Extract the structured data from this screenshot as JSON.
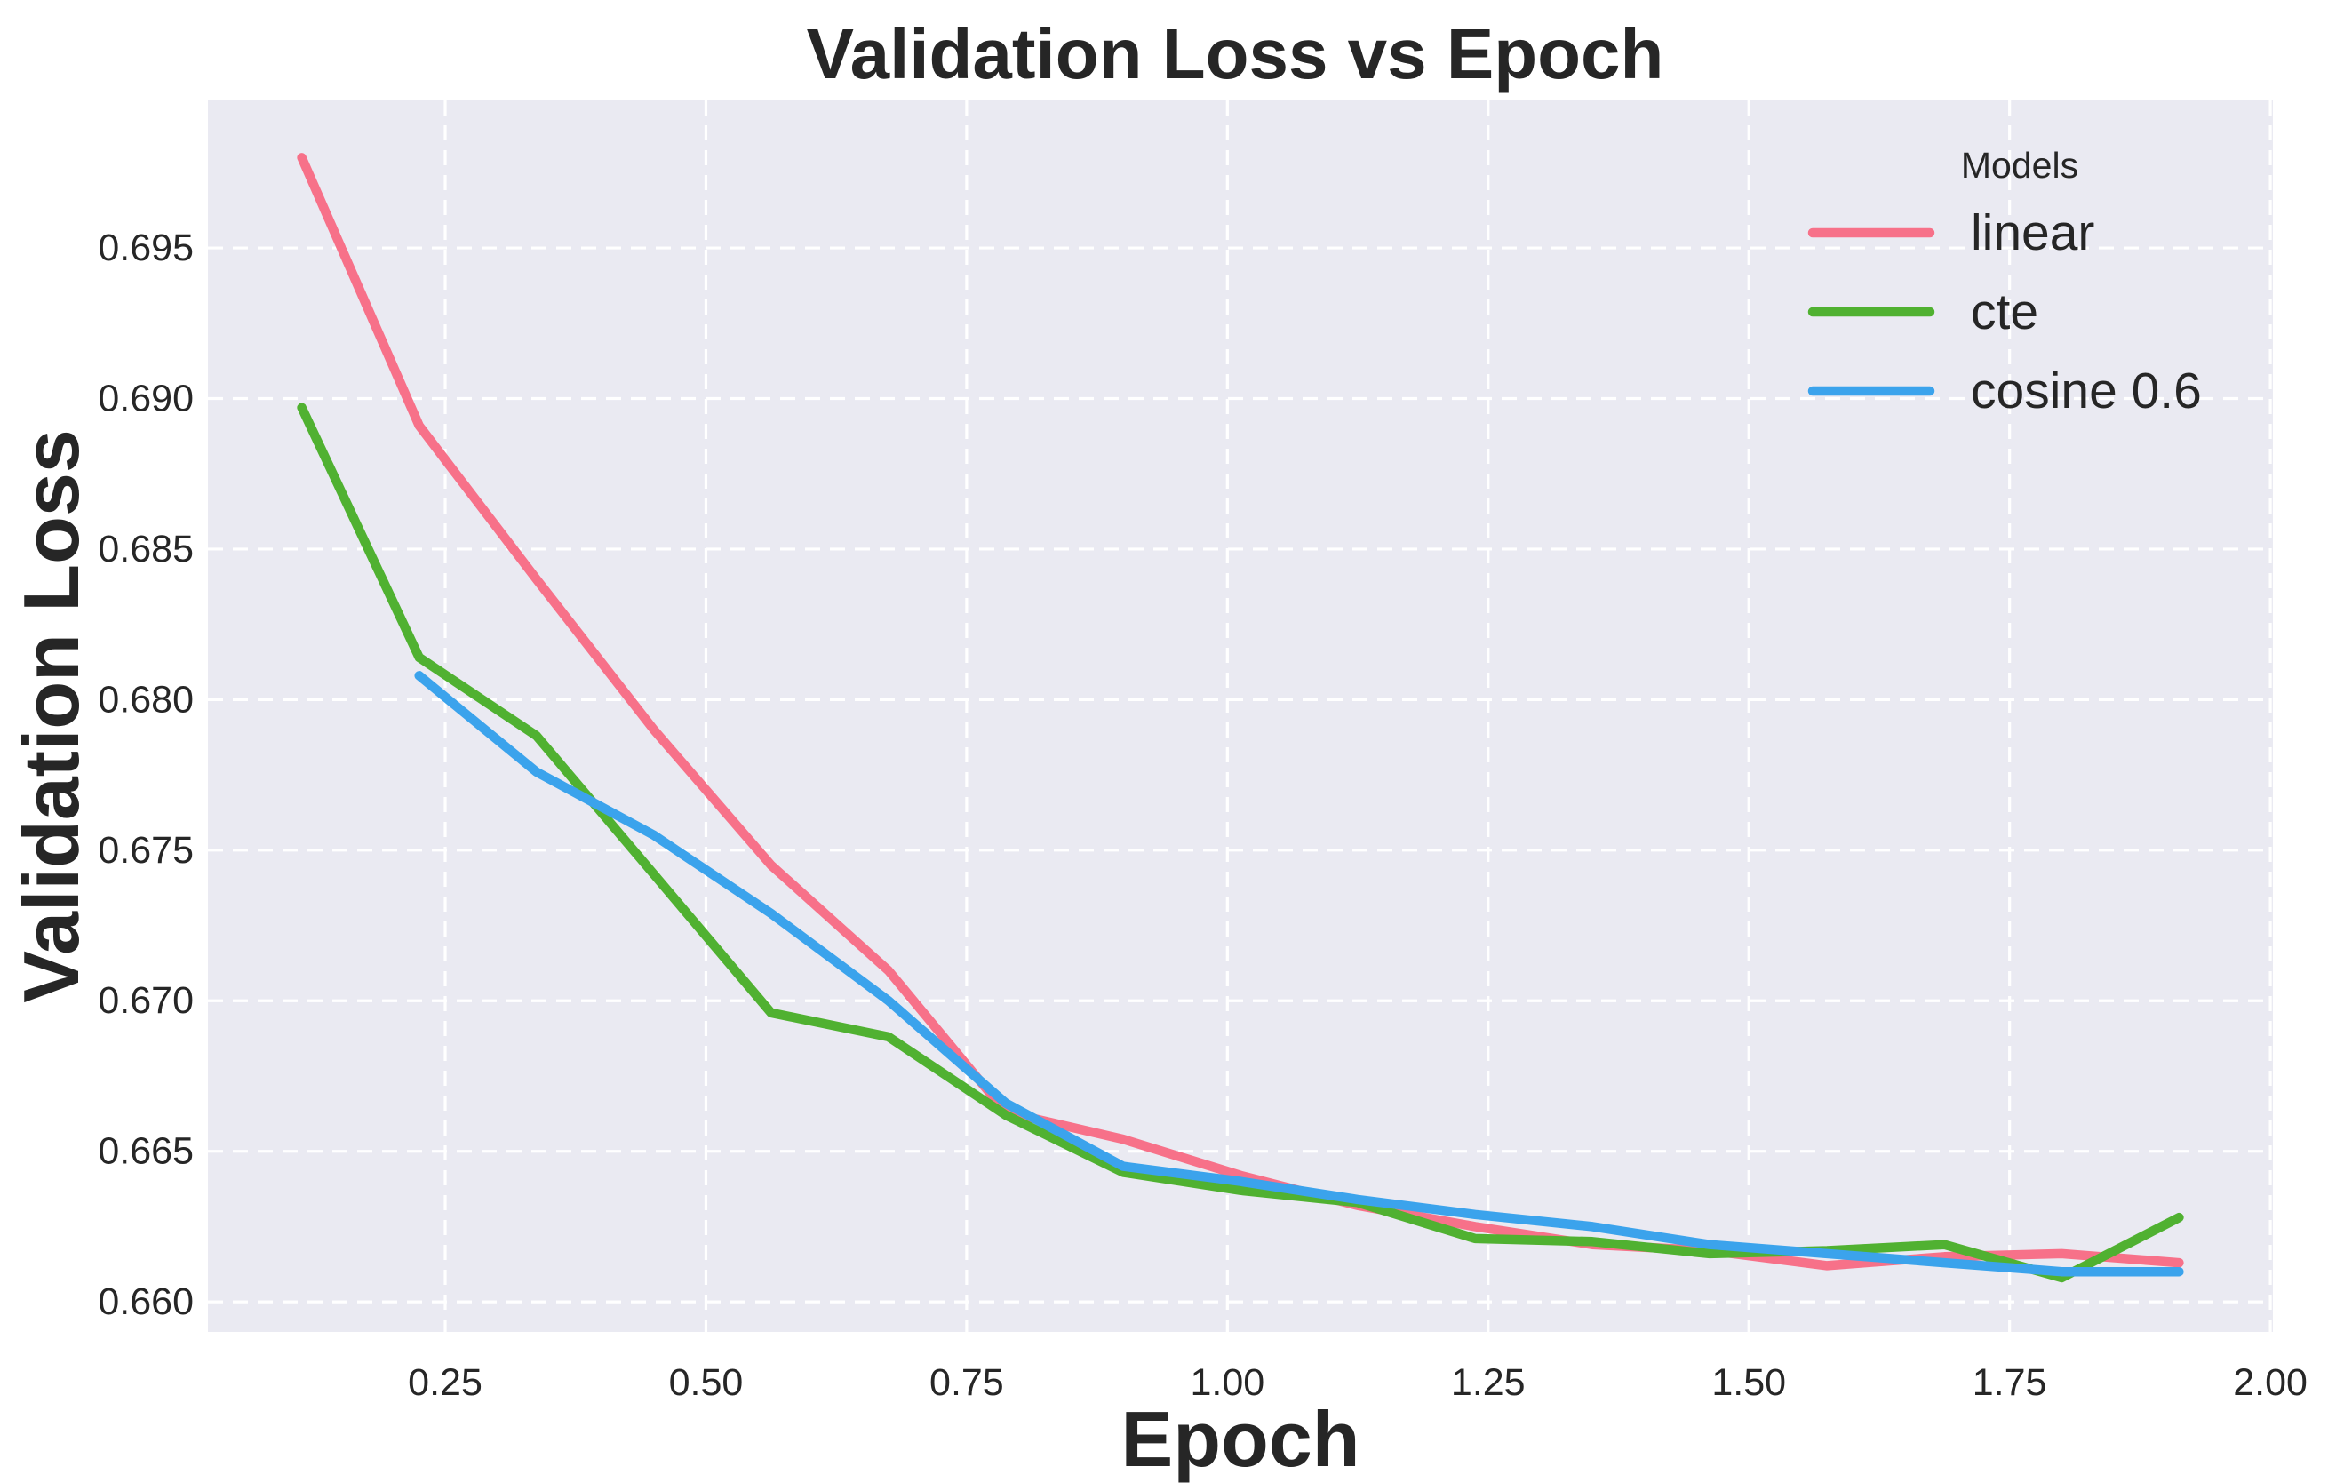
{
  "chart_data": {
    "type": "line",
    "title": "Validation Loss vs Epoch",
    "xlabel": "Epoch",
    "ylabel": "Validation Loss",
    "legend_title": "Models",
    "legend_position": "upper right",
    "grid": "dashed white on lavender background",
    "plot_bg_color": "#eaeaf2",
    "grid_color": "#ffffff",
    "text_color": "#262626",
    "xlim": [
      0.0225,
      2.0025
    ],
    "ylim": [
      0.659,
      0.6999
    ],
    "x_ticks": [
      0.25,
      0.5,
      0.75,
      1.0,
      1.25,
      1.5,
      1.75,
      2.0
    ],
    "x_tick_labels": [
      "0.25",
      "0.50",
      "0.75",
      "1.00",
      "1.25",
      "1.50",
      "1.75",
      "2.00"
    ],
    "y_ticks": [
      0.66,
      0.665,
      0.67,
      0.675,
      0.68,
      0.685,
      0.69,
      0.695
    ],
    "y_tick_labels": [
      "0.660",
      "0.665",
      "0.670",
      "0.675",
      "0.680",
      "0.685",
      "0.690",
      "0.695"
    ],
    "x": [
      0.1125,
      0.225,
      0.3375,
      0.45,
      0.5625,
      0.675,
      0.7875,
      0.9,
      1.0125,
      1.125,
      1.2375,
      1.35,
      1.4625,
      1.575,
      1.6875,
      1.8,
      1.9125
    ],
    "series": [
      {
        "name": "linear",
        "color": "#f77189",
        "values": [
          0.698,
          0.6891,
          0.684,
          0.679,
          0.6745,
          0.671,
          0.6663,
          0.6654,
          0.6642,
          0.6632,
          0.6625,
          0.6619,
          0.6617,
          0.6612,
          0.6615,
          0.6616,
          0.6613
        ]
      },
      {
        "name": "cte",
        "color": "#50b131",
        "values": [
          0.6897,
          0.6814,
          0.6788,
          0.6742,
          0.6696,
          0.6688,
          0.6662,
          0.6643,
          0.6637,
          0.6633,
          0.6621,
          0.662,
          0.6616,
          0.6617,
          0.6619,
          0.6608,
          0.6628
        ]
      },
      {
        "name": "cosine 0.6",
        "color": "#3ba3ec",
        "values": [
          null,
          0.6808,
          0.6776,
          0.6755,
          0.6729,
          0.67,
          0.6666,
          0.6645,
          0.664,
          0.6634,
          0.6629,
          0.6625,
          0.6619,
          0.6616,
          0.6613,
          0.661,
          0.661
        ]
      }
    ]
  }
}
